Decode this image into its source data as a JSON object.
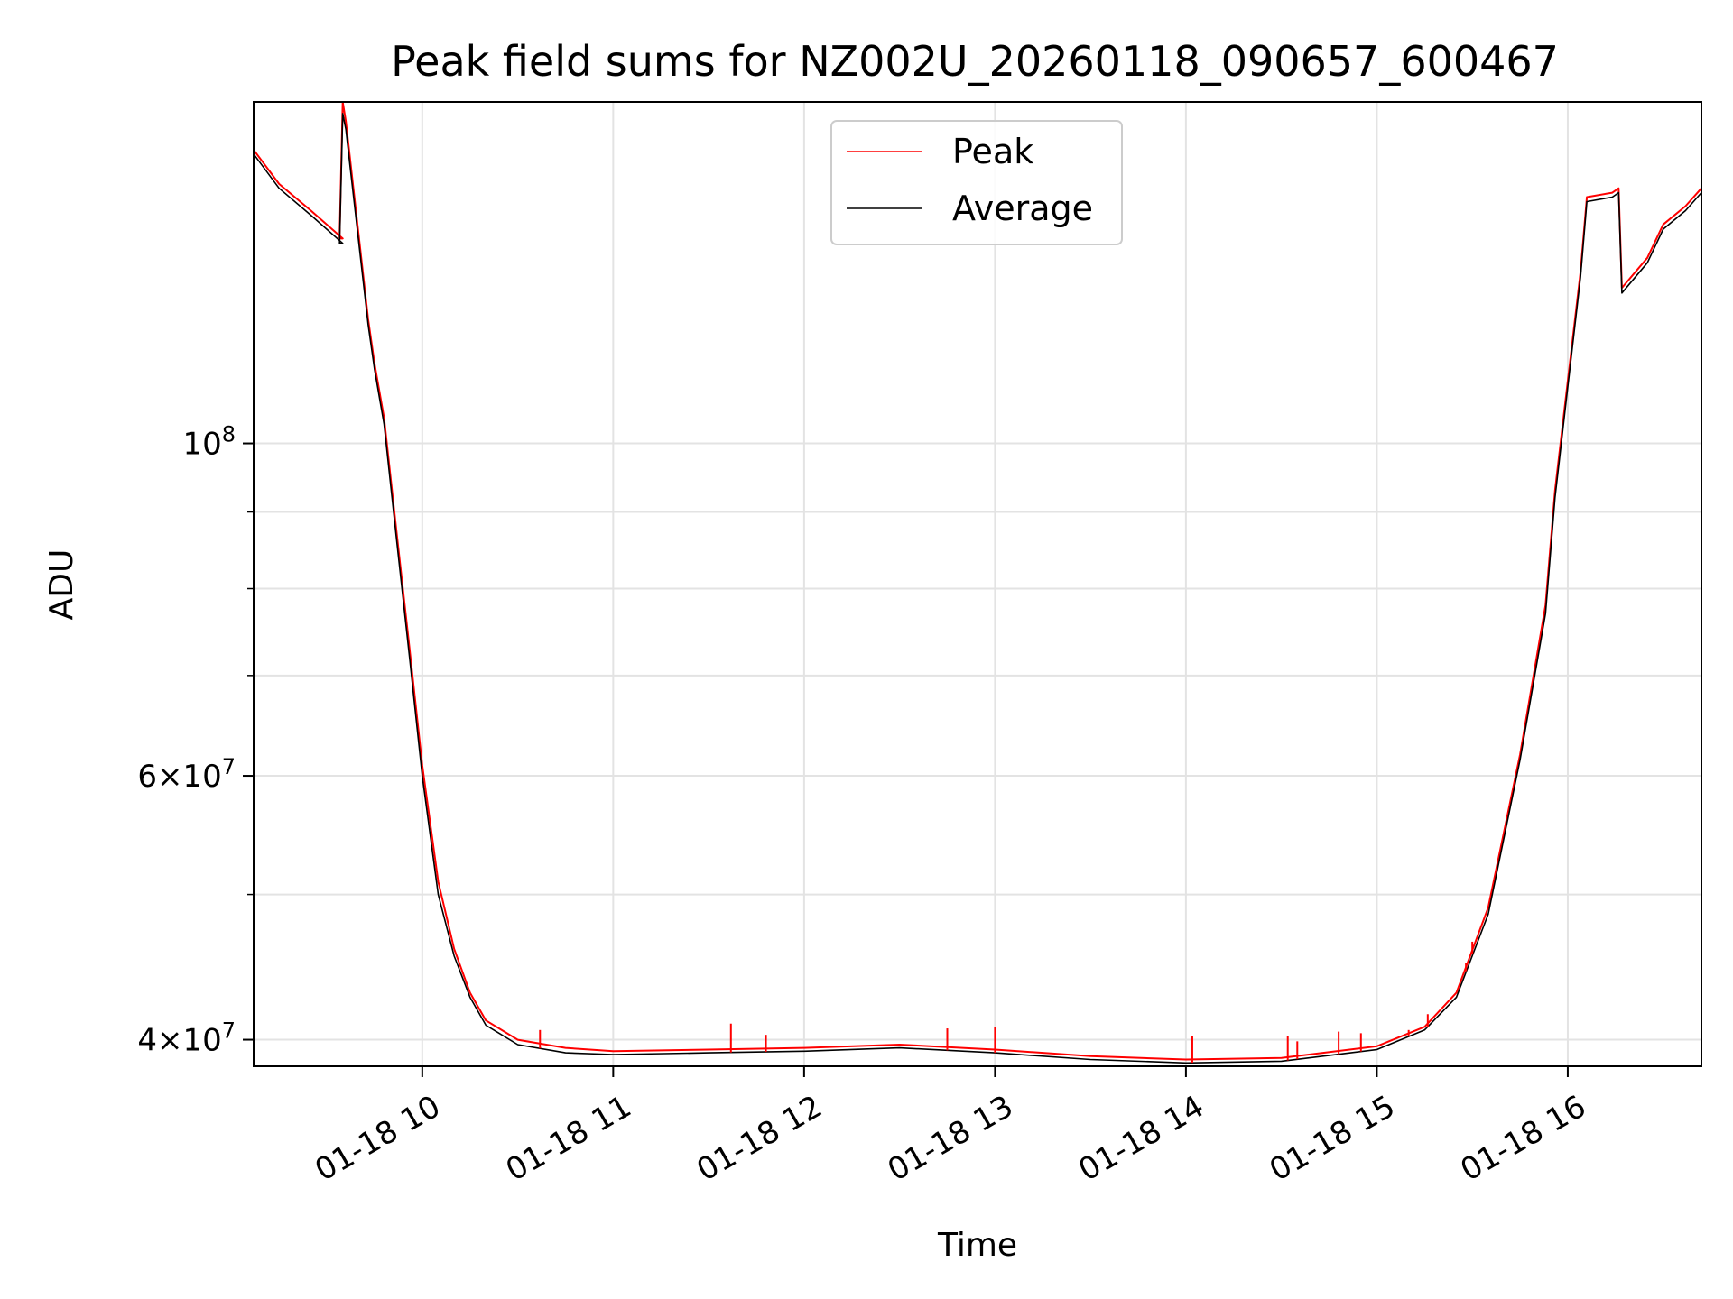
{
  "chart_data": {
    "type": "line",
    "title": "Peak field sums for NZ002U_20260118_090657_600467",
    "xlabel": "Time",
    "ylabel": "ADU",
    "y_scale": "log",
    "grid": true,
    "legend_position": "top-center",
    "x_ticks": [
      "01-18 10",
      "01-18 11",
      "01-18 12",
      "01-18 13",
      "01-18 14",
      "01-18 15",
      "01-18 16"
    ],
    "y_ticks": [
      {
        "value": 40000000,
        "base": "4×10",
        "exp": "7"
      },
      {
        "value": 60000000,
        "base": "6×10",
        "exp": "7"
      },
      {
        "value": 100000000,
        "base": "10",
        "exp": "8"
      }
    ],
    "x_range": [
      "2026-01-18 09:07",
      "2026-01-18 16:42"
    ],
    "y_range": [
      38400000,
      169000000
    ],
    "series": [
      {
        "name": "Peak",
        "color": "#ff0000",
        "points": [
          [
            "2026-01-18 09:07",
            157000000
          ],
          [
            "2026-01-18 09:15",
            149000000
          ],
          [
            "2026-01-18 09:25",
            143000000
          ],
          [
            "2026-01-18 09:35",
            137000000
          ],
          [
            "2026-01-18 09:34",
            137000000
          ],
          [
            "2026-01-18 09:35",
            169000000
          ],
          [
            "2026-01-18 09:36",
            164000000
          ],
          [
            "2026-01-18 09:43",
            121000000
          ],
          [
            "2026-01-18 09:45",
            113000000
          ],
          [
            "2026-01-18 09:48",
            104000000
          ],
          [
            "2026-01-18 09:52",
            87000000
          ],
          [
            "2026-01-18 09:56",
            73000000
          ],
          [
            "2026-01-18 10:00",
            61000000
          ],
          [
            "2026-01-18 10:05",
            51000000
          ],
          [
            "2026-01-18 10:10",
            46000000
          ],
          [
            "2026-01-18 10:15",
            43000000
          ],
          [
            "2026-01-18 10:20",
            41200000
          ],
          [
            "2026-01-18 10:30",
            40000000
          ],
          [
            "2026-01-18 10:45",
            39500000
          ],
          [
            "2026-01-18 11:00",
            39300000
          ],
          [
            "2026-01-18 11:30",
            39400000
          ],
          [
            "2026-01-18 12:00",
            39500000
          ],
          [
            "2026-01-18 12:30",
            39700000
          ],
          [
            "2026-01-18 13:00",
            39400000
          ],
          [
            "2026-01-18 13:30",
            39000000
          ],
          [
            "2026-01-18 14:00",
            38800000
          ],
          [
            "2026-01-18 14:30",
            38900000
          ],
          [
            "2026-01-18 15:00",
            39600000
          ],
          [
            "2026-01-18 15:15",
            40800000
          ],
          [
            "2026-01-18 15:25",
            43000000
          ],
          [
            "2026-01-18 15:35",
            49000000
          ],
          [
            "2026-01-18 15:45",
            62000000
          ],
          [
            "2026-01-18 15:53",
            78000000
          ],
          [
            "2026-01-18 15:56",
            93000000
          ],
          [
            "2026-01-18 16:00",
            110000000
          ],
          [
            "2026-01-18 16:04",
            130000000
          ],
          [
            "2026-01-18 16:06",
            146000000
          ],
          [
            "2026-01-18 16:14",
            147000000
          ],
          [
            "2026-01-18 16:16",
            148000000
          ],
          [
            "2026-01-18 16:17",
            127000000
          ],
          [
            "2026-01-18 16:25",
            133000000
          ],
          [
            "2026-01-18 16:30",
            140000000
          ],
          [
            "2026-01-18 16:37",
            144000000
          ],
          [
            "2026-01-18 16:42",
            148000000
          ]
        ]
      },
      {
        "name": "Average",
        "color": "#000000",
        "points": [
          [
            "2026-01-18 09:07",
            156000000
          ],
          [
            "2026-01-18 09:15",
            148000000
          ],
          [
            "2026-01-18 09:25",
            142000000
          ],
          [
            "2026-01-18 09:35",
            136000000
          ],
          [
            "2026-01-18 09:34",
            136000000
          ],
          [
            "2026-01-18 09:35",
            166000000
          ],
          [
            "2026-01-18 09:36",
            162000000
          ],
          [
            "2026-01-18 09:43",
            120000000
          ],
          [
            "2026-01-18 09:45",
            112000000
          ],
          [
            "2026-01-18 09:48",
            103000000
          ],
          [
            "2026-01-18 09:52",
            86000000
          ],
          [
            "2026-01-18 09:56",
            72000000
          ],
          [
            "2026-01-18 10:00",
            60000000
          ],
          [
            "2026-01-18 10:05",
            50000000
          ],
          [
            "2026-01-18 10:10",
            45500000
          ],
          [
            "2026-01-18 10:15",
            42700000
          ],
          [
            "2026-01-18 10:20",
            40900000
          ],
          [
            "2026-01-18 10:30",
            39700000
          ],
          [
            "2026-01-18 10:45",
            39200000
          ],
          [
            "2026-01-18 11:00",
            39100000
          ],
          [
            "2026-01-18 11:30",
            39200000
          ],
          [
            "2026-01-18 12:00",
            39300000
          ],
          [
            "2026-01-18 12:30",
            39500000
          ],
          [
            "2026-01-18 13:00",
            39200000
          ],
          [
            "2026-01-18 13:30",
            38800000
          ],
          [
            "2026-01-18 14:00",
            38600000
          ],
          [
            "2026-01-18 14:30",
            38700000
          ],
          [
            "2026-01-18 15:00",
            39400000
          ],
          [
            "2026-01-18 15:15",
            40600000
          ],
          [
            "2026-01-18 15:25",
            42700000
          ],
          [
            "2026-01-18 15:35",
            48500000
          ],
          [
            "2026-01-18 15:45",
            61500000
          ],
          [
            "2026-01-18 15:53",
            77000000
          ],
          [
            "2026-01-18 15:56",
            92000000
          ],
          [
            "2026-01-18 16:00",
            109000000
          ],
          [
            "2026-01-18 16:04",
            129000000
          ],
          [
            "2026-01-18 16:06",
            145000000
          ],
          [
            "2026-01-18 16:14",
            146000000
          ],
          [
            "2026-01-18 16:16",
            147000000
          ],
          [
            "2026-01-18 16:17",
            126000000
          ],
          [
            "2026-01-18 16:25",
            132000000
          ],
          [
            "2026-01-18 16:30",
            139000000
          ],
          [
            "2026-01-18 16:37",
            143000000
          ],
          [
            "2026-01-18 16:42",
            147000000
          ]
        ]
      }
    ],
    "peak_spikes": [
      [
        "2026-01-18 10:37",
        40600000
      ],
      [
        "2026-01-18 11:37",
        41000000
      ],
      [
        "2026-01-18 11:48",
        40300000
      ],
      [
        "2026-01-18 12:45",
        40700000
      ],
      [
        "2026-01-18 13:00",
        40800000
      ],
      [
        "2026-01-18 14:02",
        40200000
      ],
      [
        "2026-01-18 14:32",
        40200000
      ],
      [
        "2026-01-18 14:35",
        39900000
      ],
      [
        "2026-01-18 14:48",
        40500000
      ],
      [
        "2026-01-18 14:55",
        40400000
      ],
      [
        "2026-01-18 15:10",
        40600000
      ],
      [
        "2026-01-18 15:16",
        41600000
      ],
      [
        "2026-01-18 15:28",
        45000000
      ],
      [
        "2026-01-18 15:30",
        46500000
      ]
    ]
  }
}
